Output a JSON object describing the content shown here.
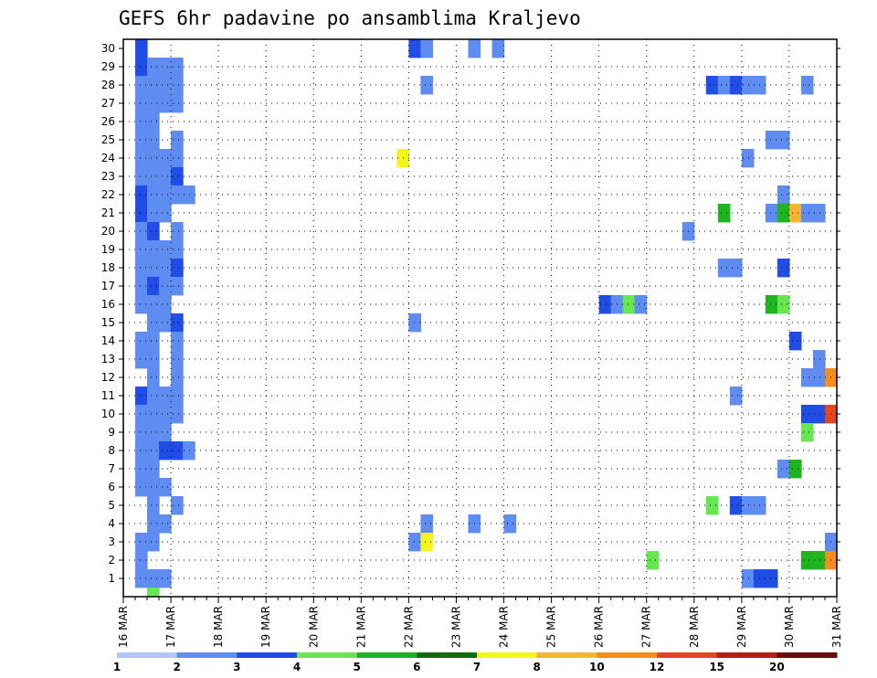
{
  "chart_data": {
    "type": "heatmap",
    "title": "GEFS 6hr padavine po ansamblima Kraljevo",
    "y_categories": [
      "1",
      "2",
      "3",
      "4",
      "5",
      "6",
      "7",
      "8",
      "9",
      "10",
      "11",
      "12",
      "13",
      "14",
      "15",
      "16",
      "17",
      "18",
      "19",
      "20",
      "21",
      "22",
      "23",
      "24",
      "25",
      "26",
      "27",
      "28",
      "29",
      "30"
    ],
    "x_tick_labels": [
      "16 MAR",
      "17 MAR",
      "18 MAR",
      "19 MAR",
      "20 MAR",
      "21 MAR",
      "22 MAR",
      "23 MAR",
      "24 MAR",
      "25 MAR",
      "26 MAR",
      "27 MAR",
      "28 MAR",
      "29 MAR",
      "30 MAR",
      "31 MAR"
    ],
    "x_range_days": [
      0,
      15
    ],
    "y_range": [
      0,
      30
    ],
    "grid": true,
    "legend_placement": "bottom",
    "colorbar": {
      "colors": [
        "#b3c6f7",
        "#5f8cf0",
        "#1f4de6",
        "#66e650",
        "#1eb41e",
        "#0a6e0a",
        "#f5f51e",
        "#f5b432",
        "#f58c1e",
        "#e6461e",
        "#b41e14",
        "#6e0a0a"
      ],
      "labels": [
        "1",
        "2",
        "3",
        "4",
        "5",
        "6",
        "7",
        "8",
        "10",
        "12",
        "15",
        "20"
      ]
    },
    "cells": [
      [
        1,
        30,
        2
      ],
      [
        1,
        29,
        2
      ],
      [
        1,
        28,
        1
      ],
      [
        1,
        27,
        1
      ],
      [
        1,
        26,
        1
      ],
      [
        1,
        25,
        1
      ],
      [
        1,
        24,
        1
      ],
      [
        1,
        23,
        1
      ],
      [
        1,
        22,
        2
      ],
      [
        1,
        21,
        2
      ],
      [
        1,
        20,
        1
      ],
      [
        1,
        19,
        1
      ],
      [
        1,
        18,
        1
      ],
      [
        1,
        17,
        1
      ],
      [
        1,
        16,
        1
      ],
      [
        1,
        14,
        1
      ],
      [
        1,
        13,
        1
      ],
      [
        1,
        11,
        2
      ],
      [
        1,
        10,
        1
      ],
      [
        1,
        9,
        1
      ],
      [
        1,
        8,
        1
      ],
      [
        1,
        7,
        1
      ],
      [
        1,
        6,
        1
      ],
      [
        1,
        3,
        1
      ],
      [
        1,
        2,
        1
      ],
      [
        1,
        1,
        1
      ],
      [
        2,
        29,
        1
      ],
      [
        2,
        28,
        1
      ],
      [
        2,
        27,
        1
      ],
      [
        2,
        26,
        1
      ],
      [
        2,
        25,
        1
      ],
      [
        2,
        24,
        1
      ],
      [
        2,
        23,
        1
      ],
      [
        2,
        22,
        1
      ],
      [
        2,
        21,
        1
      ],
      [
        2,
        20,
        2
      ],
      [
        2,
        19,
        1
      ],
      [
        2,
        18,
        1
      ],
      [
        2,
        17,
        2
      ],
      [
        2,
        16,
        1
      ],
      [
        2,
        15,
        1
      ],
      [
        2,
        14,
        1
      ],
      [
        2,
        13,
        1
      ],
      [
        2,
        12,
        1
      ],
      [
        2,
        11,
        1
      ],
      [
        2,
        10,
        1
      ],
      [
        2,
        9,
        1
      ],
      [
        2,
        8,
        1
      ],
      [
        2,
        7,
        1
      ],
      [
        2,
        6,
        1
      ],
      [
        2,
        5,
        1
      ],
      [
        2,
        4,
        1
      ],
      [
        2,
        3,
        1
      ],
      [
        2,
        1,
        1
      ],
      [
        2,
        0,
        3
      ],
      [
        3,
        29,
        1
      ],
      [
        3,
        28,
        1
      ],
      [
        3,
        27,
        1
      ],
      [
        3,
        24,
        1
      ],
      [
        3,
        23,
        1
      ],
      [
        3,
        22,
        1
      ],
      [
        3,
        21,
        1
      ],
      [
        3,
        19,
        1
      ],
      [
        3,
        18,
        1
      ],
      [
        3,
        17,
        1
      ],
      [
        3,
        16,
        1
      ],
      [
        3,
        15,
        1
      ],
      [
        3,
        11,
        1
      ],
      [
        3,
        10,
        1
      ],
      [
        3,
        9,
        1
      ],
      [
        3,
        8,
        2
      ],
      [
        3,
        6,
        1
      ],
      [
        3,
        4,
        1
      ],
      [
        3,
        1,
        1
      ],
      [
        4,
        29,
        1
      ],
      [
        4,
        28,
        1
      ],
      [
        4,
        27,
        1
      ],
      [
        4,
        25,
        1
      ],
      [
        4,
        24,
        1
      ],
      [
        4,
        23,
        2
      ],
      [
        4,
        22,
        1
      ],
      [
        4,
        20,
        1
      ],
      [
        4,
        19,
        1
      ],
      [
        4,
        18,
        2
      ],
      [
        4,
        17,
        1
      ],
      [
        4,
        15,
        2
      ],
      [
        4,
        14,
        1
      ],
      [
        4,
        13,
        1
      ],
      [
        4,
        12,
        1
      ],
      [
        4,
        11,
        1
      ],
      [
        4,
        10,
        1
      ],
      [
        4,
        8,
        2
      ],
      [
        4,
        5,
        1
      ],
      [
        5,
        22,
        1
      ],
      [
        5,
        8,
        1
      ],
      [
        23,
        24,
        6
      ],
      [
        24,
        30,
        2
      ],
      [
        24,
        15,
        1
      ],
      [
        24,
        3,
        1
      ],
      [
        25,
        30,
        1
      ],
      [
        25,
        28,
        1
      ],
      [
        25,
        4,
        1
      ],
      [
        25,
        3,
        6
      ],
      [
        29,
        30,
        1
      ],
      [
        29,
        4,
        1
      ],
      [
        31,
        30,
        1
      ],
      [
        32,
        4,
        1
      ],
      [
        40,
        16,
        2
      ],
      [
        41,
        16,
        1
      ],
      [
        42,
        16,
        3
      ],
      [
        43,
        16,
        1
      ],
      [
        44,
        2,
        3
      ],
      [
        47,
        20,
        1
      ],
      [
        49,
        28,
        2
      ],
      [
        49,
        5,
        3
      ],
      [
        50,
        28,
        1
      ],
      [
        50,
        21,
        4
      ],
      [
        50,
        18,
        1
      ],
      [
        51,
        28,
        2
      ],
      [
        51,
        18,
        1
      ],
      [
        51,
        11,
        1
      ],
      [
        51,
        5,
        2
      ],
      [
        52,
        28,
        1
      ],
      [
        52,
        24,
        1
      ],
      [
        52,
        5,
        1
      ],
      [
        52,
        1,
        1
      ],
      [
        53,
        28,
        1
      ],
      [
        53,
        5,
        1
      ],
      [
        53,
        1,
        2
      ],
      [
        54,
        25,
        1
      ],
      [
        54,
        21,
        1
      ],
      [
        54,
        16,
        4
      ],
      [
        54,
        1,
        2
      ],
      [
        55,
        25,
        1
      ],
      [
        55,
        22,
        1
      ],
      [
        55,
        21,
        4
      ],
      [
        55,
        18,
        2
      ],
      [
        55,
        16,
        3
      ],
      [
        55,
        7,
        1
      ],
      [
        56,
        21,
        7
      ],
      [
        56,
        14,
        2
      ],
      [
        56,
        7,
        4
      ],
      [
        57,
        28,
        1
      ],
      [
        57,
        21,
        1
      ],
      [
        57,
        12,
        1
      ],
      [
        57,
        10,
        2
      ],
      [
        57,
        9,
        3
      ],
      [
        57,
        2,
        4
      ],
      [
        58,
        21,
        1
      ],
      [
        58,
        13,
        1
      ],
      [
        58,
        12,
        1
      ],
      [
        58,
        10,
        2
      ],
      [
        58,
        2,
        4
      ],
      [
        59,
        12,
        8
      ],
      [
        59,
        10,
        9
      ],
      [
        59,
        3,
        1
      ],
      [
        59,
        2,
        8
      ]
    ]
  }
}
